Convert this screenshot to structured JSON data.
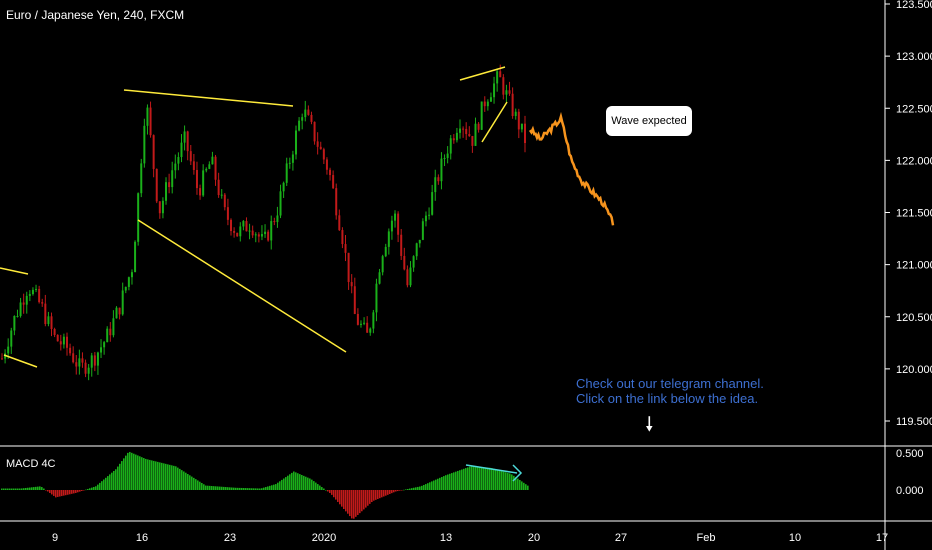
{
  "header": {
    "title": "Euro / Japanese Yen, 240, FXCM"
  },
  "macd": {
    "label": "MACD 4C",
    "ticks": [
      "0.500",
      "0.000"
    ]
  },
  "annotation": {
    "bubble": "Wave expected"
  },
  "note": {
    "line1": "Check out our telegram channel.",
    "line2": "Click on the link below the idea."
  },
  "chart_data": {
    "type": "line",
    "title": "Euro / Japanese Yen, 240, FXCM",
    "xlabel": "",
    "ylabel": "",
    "ylim": [
      119.3,
      123.5
    ],
    "y_ticks": [
      "123.500",
      "123.000",
      "122.500",
      "122.000",
      "121.500",
      "121.000",
      "120.500",
      "120.000",
      "119.500"
    ],
    "x_ticks": [
      "9",
      "16",
      "23",
      "2020",
      "13",
      "20",
      "27",
      "Feb",
      "10",
      "17"
    ],
    "series": [
      {
        "values": [
          120.1,
          120.5,
          120.8,
          120.6,
          120.3,
          120.2,
          120.0,
          120.1,
          120.3,
          120.6,
          121.0,
          122.6,
          121.5,
          121.9,
          122.2,
          121.7,
          122.0,
          121.5,
          121.3,
          121.4,
          121.2,
          121.5,
          122.0,
          122.5,
          122.2,
          121.9,
          121.3,
          120.5,
          120.3,
          121.1,
          121.5,
          120.8,
          121.3,
          121.7,
          122.1,
          122.4,
          122.2,
          122.6,
          122.8,
          122.5,
          122.2
        ]
      },
      {
        "values": [
          122.3,
          122.2,
          122.3,
          122.4,
          122.0,
          121.8,
          121.7,
          121.6,
          121.4
        ]
      }
    ],
    "colors": {
      "up": "#1ab01a",
      "down": "#c21a1a",
      "forecast": "#f7941d",
      "trend": "#ffeb3b",
      "histogram_up": "#1ab01a",
      "histogram_down": "#c21a1a"
    }
  }
}
